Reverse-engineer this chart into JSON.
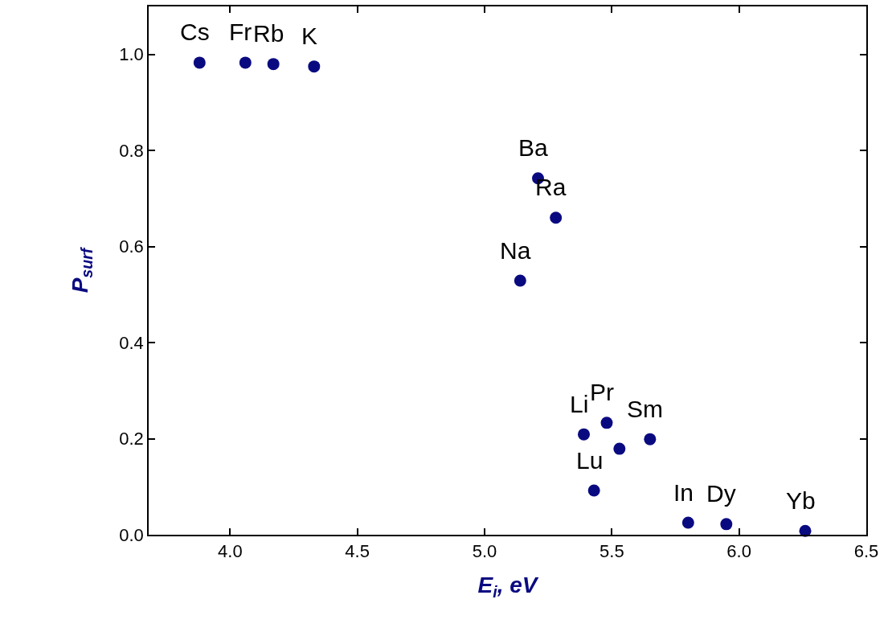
{
  "chart_data": {
    "type": "scatter",
    "xlabel": "E$_{i}$, eV",
    "ylabel": "P$_{surf}$",
    "x": [
      3.88,
      4.06,
      4.17,
      4.33,
      5.21,
      5.28,
      5.14,
      5.39,
      5.48,
      5.43,
      5.53,
      5.65,
      5.8,
      5.95,
      6.26
    ],
    "series": [
      {
        "color": "#0a0a80",
        "values": [
          0.983,
          0.983,
          0.98,
          0.975,
          0.742,
          0.66,
          0.529,
          0.209,
          0.233,
          0.092,
          0.179,
          0.199,
          0.025,
          0.022,
          0.008
        ]
      }
    ],
    "marker": "circle",
    "grid": false,
    "xlim": [
      3.68,
      6.5
    ],
    "ylim": [
      0,
      1.1
    ],
    "xticks": [
      {
        "value": 4,
        "label": "4.0"
      },
      4.5,
      {
        "value": 5,
        "label": "5.0"
      },
      5.5,
      {
        "value": 6,
        "label": "6.0"
      },
      6.5
    ],
    "yticks": [
      {
        "value": 0,
        "label": "0.0"
      },
      0.2,
      0.4,
      0.6,
      0.8,
      {
        "value": 1,
        "label": "1.0"
      }
    ],
    "annotations": [
      {
        "text": "Cs",
        "x": 3.88,
        "y": 0.983
      },
      {
        "text": "Fr",
        "x": 4.06,
        "y": 0.983
      },
      {
        "text": "Rb",
        "x": 4.17,
        "y": 0.98
      },
      {
        "text": "K",
        "x": 4.33,
        "y": 0.975
      },
      {
        "text": "Ba",
        "x": 5.21,
        "y": 0.742
      },
      {
        "text": "Ra",
        "x": 5.28,
        "y": 0.66
      },
      {
        "text": "Na",
        "x": 5.14,
        "y": 0.529
      },
      {
        "text": "Li",
        "x": 5.39,
        "y": 0.209
      },
      {
        "text": "Pr",
        "x": 5.48,
        "y": 0.233
      },
      {
        "text": "Lu",
        "x": 5.43,
        "y": 0.092
      },
      {
        "text": "Sm",
        "x": 5.65,
        "y": 0.199
      },
      {
        "text": "In",
        "x": 5.8,
        "y": 0.025
      },
      {
        "text": "Dy",
        "x": 5.95,
        "y": 0.022
      },
      {
        "text": "Yb",
        "x": 6.26,
        "y": 0.008
      }
    ]
  }
}
